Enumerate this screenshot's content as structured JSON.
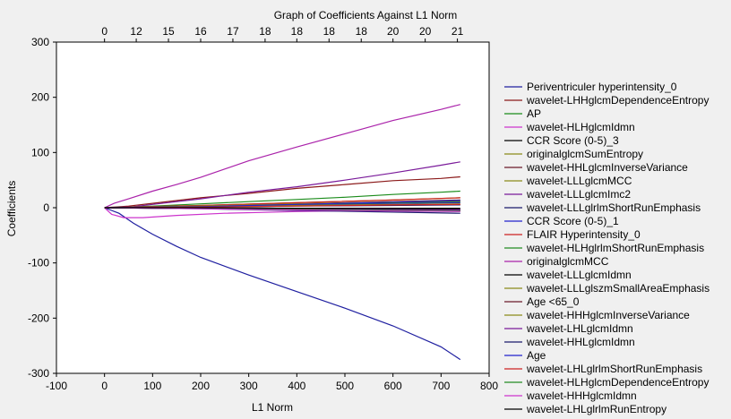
{
  "chart_data": {
    "type": "line",
    "title": "Graph of Coefficients Against L1 Norm",
    "xlabel": "L1 Norm",
    "ylabel": "Coefficients",
    "xlim": [
      -100,
      800
    ],
    "ylim": [
      -300,
      300
    ],
    "x_ticks": [
      -100,
      0,
      100,
      200,
      300,
      400,
      500,
      600,
      700,
      800
    ],
    "y_ticks": [
      -300,
      -200,
      -100,
      0,
      100,
      200,
      300
    ],
    "top_axis": {
      "positions": [
        0,
        66,
        133,
        200,
        267,
        334,
        400,
        467,
        534,
        600,
        667,
        734
      ],
      "labels": [
        "0",
        "12",
        "15",
        "16",
        "17",
        "18",
        "18",
        "18",
        "18",
        "20",
        "20",
        "21"
      ]
    },
    "grid": false,
    "legend_position": "right",
    "series": [
      {
        "name": "Periventriculer hyperintensity_0",
        "color": "#1f1fa0",
        "x": [
          0,
          30,
          60,
          100,
          150,
          200,
          300,
          400,
          500,
          600,
          700,
          740
        ],
        "y": [
          0,
          -10,
          -28,
          -48,
          -70,
          -90,
          -122,
          -152,
          -182,
          -214,
          -252,
          -275
        ]
      },
      {
        "name": "wavelet-LHHglcmDependenceEntropy",
        "color": "#8b1a1a",
        "x": [
          0,
          50,
          100,
          200,
          300,
          400,
          500,
          600,
          700,
          740
        ],
        "y": [
          0,
          3,
          8,
          18,
          26,
          35,
          42,
          49,
          53,
          56
        ]
      },
      {
        "name": "AP",
        "color": "#1a8b1a",
        "x": [
          0,
          100,
          200,
          300,
          400,
          500,
          600,
          700,
          740
        ],
        "y": [
          0,
          3,
          7,
          11,
          15,
          19,
          24,
          28,
          30
        ]
      },
      {
        "name": "wavelet-HLHglcmIdmn",
        "color": "#cc33cc",
        "x": [
          0,
          15,
          40,
          80,
          150,
          250,
          400,
          550,
          700,
          740
        ],
        "y": [
          0,
          -12,
          -18,
          -18,
          -14,
          -10,
          -7,
          -5,
          -4,
          -3
        ]
      },
      {
        "name": "CCR Score (0-5)_3",
        "color": "#000000",
        "x": [
          0,
          100,
          300,
          500,
          740
        ],
        "y": [
          0,
          -1,
          -2,
          -2,
          -3
        ]
      },
      {
        "name": "originalglcmSumEntropy",
        "color": "#8b8b1a",
        "x": [
          0,
          200,
          400,
          600,
          740
        ],
        "y": [
          0,
          4,
          9,
          14,
          18
        ]
      },
      {
        "name": "wavelet-HHLglcmInverseVariance",
        "color": "#6b1a2a",
        "x": [
          0,
          200,
          400,
          600,
          740
        ],
        "y": [
          0,
          3,
          7,
          11,
          14
        ]
      },
      {
        "name": "wavelet-LLLglcmMCC",
        "color": "#8b8b1a",
        "x": [
          0,
          200,
          400,
          600,
          740
        ],
        "y": [
          0,
          2,
          5,
          8,
          10
        ]
      },
      {
        "name": "wavelet-LLLglcmImc2",
        "color": "#7a1a9a",
        "x": [
          0,
          60,
          100,
          200,
          300,
          400,
          500,
          600,
          700,
          740
        ],
        "y": [
          0,
          2,
          6,
          16,
          28,
          38,
          50,
          63,
          77,
          83
        ]
      },
      {
        "name": "wavelet-LLLglrlmShortRunEmphasis",
        "color": "#1a1a6b",
        "x": [
          0,
          200,
          400,
          600,
          740
        ],
        "y": [
          0,
          1,
          3,
          4,
          5
        ]
      },
      {
        "name": "CCR Score (0-5)_1",
        "color": "#2222cc",
        "x": [
          0,
          200,
          400,
          600,
          740
        ],
        "y": [
          0,
          2,
          5,
          8,
          9
        ]
      },
      {
        "name": "FLAIR Hyperintensity_0",
        "color": "#cc2222",
        "x": [
          0,
          200,
          400,
          600,
          740
        ],
        "y": [
          0,
          4,
          9,
          14,
          18
        ]
      },
      {
        "name": "wavelet-HLHglrlmShortRunEmphasis",
        "color": "#228b22",
        "x": [
          0,
          200,
          400,
          600,
          740
        ],
        "y": [
          0,
          3,
          6,
          9,
          11
        ]
      },
      {
        "name": "originalglcmMCC",
        "color": "#aa22aa",
        "x": [
          0,
          20,
          50,
          100,
          150,
          200,
          300,
          400,
          500,
          600,
          700,
          740
        ],
        "y": [
          0,
          8,
          16,
          30,
          42,
          55,
          85,
          110,
          134,
          158,
          178,
          187
        ]
      },
      {
        "name": "wavelet-LLLglcmIdmn",
        "color": "#000000",
        "x": [
          0,
          200,
          400,
          600,
          740
        ],
        "y": [
          0,
          -1,
          -2,
          -4,
          -5
        ]
      },
      {
        "name": "wavelet-LLLglszmSmallAreaEmphasis",
        "color": "#8b8b1a",
        "x": [
          0,
          200,
          400,
          600,
          740
        ],
        "y": [
          0,
          3,
          7,
          10,
          12
        ]
      },
      {
        "name": "Age <65_0",
        "color": "#6b1a2a",
        "x": [
          0,
          200,
          400,
          600,
          740
        ],
        "y": [
          0,
          -1,
          -3,
          -4,
          -5
        ]
      },
      {
        "name": "wavelet-HHHglcmInverseVariance",
        "color": "#8b8b1a",
        "x": [
          0,
          200,
          400,
          600,
          740
        ],
        "y": [
          0,
          2,
          4,
          6,
          7
        ]
      },
      {
        "name": "wavelet-LHLglcmIdmn",
        "color": "#7a1a9a",
        "x": [
          0,
          200,
          400,
          600,
          740
        ],
        "y": [
          0,
          -1,
          -2,
          -3,
          -4
        ]
      },
      {
        "name": "wavelet-HHLglcmIdmn",
        "color": "#1a1a6b",
        "x": [
          0,
          200,
          400,
          600,
          740
        ],
        "y": [
          0,
          -2,
          -5,
          -8,
          -10
        ]
      },
      {
        "name": "Age",
        "color": "#2222cc",
        "x": [
          0,
          200,
          400,
          600,
          740
        ],
        "y": [
          0,
          2,
          6,
          10,
          13
        ]
      },
      {
        "name": "wavelet-LHLglrlmShortRunEmphasis",
        "color": "#cc2222",
        "x": [
          0,
          200,
          400,
          600,
          740
        ],
        "y": [
          0,
          1,
          3,
          5,
          6
        ]
      },
      {
        "name": "wavelet-HLHglcmDependenceEntropy",
        "color": "#228b22",
        "x": [
          0,
          200,
          400,
          600,
          740
        ],
        "y": [
          0,
          -1,
          -3,
          -5,
          -6
        ]
      },
      {
        "name": "wavelet-HHHglcmIdmn",
        "color": "#cc33cc",
        "x": [
          0,
          200,
          400,
          600,
          740
        ],
        "y": [
          0,
          -2,
          -4,
          -6,
          -7
        ]
      },
      {
        "name": "wavelet-LHLglrlmRunEntropy",
        "color": "#000000",
        "x": [
          0,
          200,
          400,
          600,
          740
        ],
        "y": [
          0,
          0,
          -1,
          -1,
          -1
        ]
      }
    ]
  }
}
